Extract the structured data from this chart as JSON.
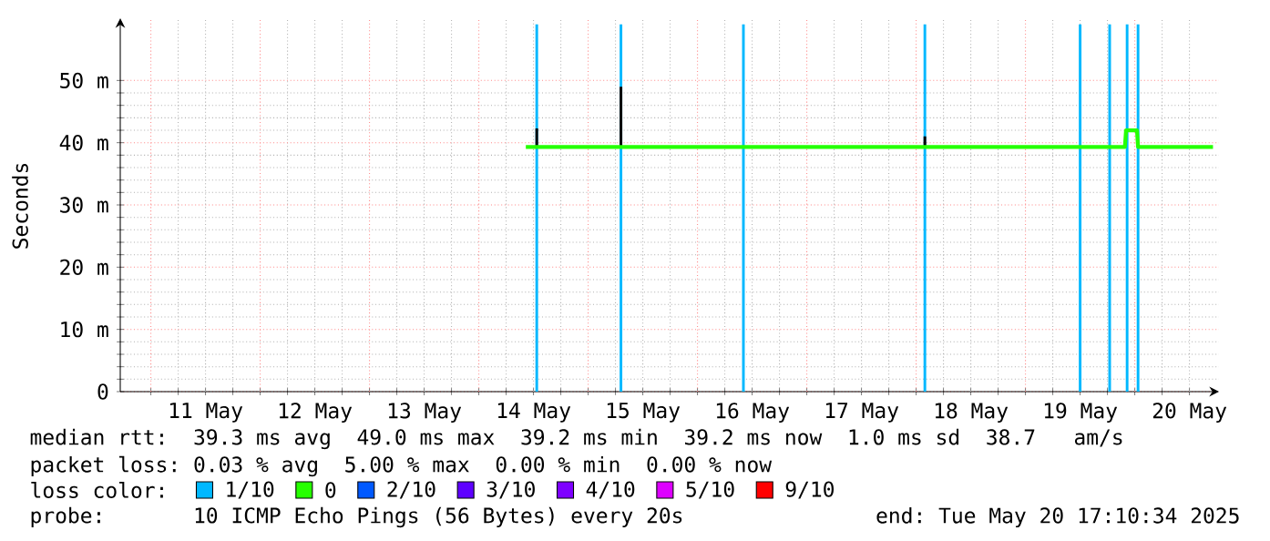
{
  "chart_data": {
    "type": "line",
    "ylabel": "Seconds",
    "legend_title": "loss color:",
    "legend": "bottom",
    "grid": true,
    "xlim": [
      "2025-05-10T17:17",
      "2025-05-20T18:29"
    ],
    "ylim": [
      0,
      60
    ],
    "xticks": [
      {
        "value": "2025-05-11",
        "label": null
      },
      {
        "value": "2025-05-11T12:00",
        "label": "11 May"
      },
      {
        "value": "2025-05-12",
        "label": null
      },
      {
        "value": "2025-05-12T12:00",
        "label": "12 May"
      },
      {
        "value": "2025-05-13",
        "label": null
      },
      {
        "value": "2025-05-13T12:00",
        "label": "13 May"
      },
      {
        "value": "2025-05-14",
        "label": null
      },
      {
        "value": "2025-05-14T12:00",
        "label": "14 May"
      },
      {
        "value": "2025-05-15",
        "label": null
      },
      {
        "value": "2025-05-15T12:00",
        "label": "15 May"
      },
      {
        "value": "2025-05-16",
        "label": null
      },
      {
        "value": "2025-05-16T12:00",
        "label": "16 May"
      },
      {
        "value": "2025-05-17",
        "label": null
      },
      {
        "value": "2025-05-17T12:00",
        "label": "17 May"
      },
      {
        "value": "2025-05-18",
        "label": null
      },
      {
        "value": "2025-05-18T12:00",
        "label": "18 May"
      },
      {
        "value": "2025-05-19",
        "label": null
      },
      {
        "value": "2025-05-19T12:00",
        "label": "19 May"
      },
      {
        "value": "2025-05-20",
        "label": null
      },
      {
        "value": "2025-05-20T12:00",
        "label": "20 May"
      }
    ],
    "yticks": [
      {
        "value": 0,
        "label": "0"
      },
      {
        "value": 10,
        "label": "10 m"
      },
      {
        "value": 20,
        "label": "20 m"
      },
      {
        "value": 30,
        "label": "30 m"
      },
      {
        "value": 40,
        "label": "40 m"
      },
      {
        "value": 50,
        "label": "50 m"
      }
    ],
    "series": [
      {
        "name": "1/10",
        "type": "bar",
        "color": "#00b8ff",
        "x": [
          "2025-05-14T12:43",
          "2025-05-15T07:12",
          "2025-05-16T10:05",
          "2025-05-18T01:55",
          "2025-05-19T12:00",
          "2025-05-19T18:29",
          "2025-05-19T22:19",
          "2025-05-20T00:43"
        ],
        "values": [
          59,
          59,
          59,
          59,
          59,
          59,
          59,
          59
        ]
      },
      {
        "color": "#000000",
        "x": [
          "2025-05-14T12:43",
          "2025-05-14T12:43",
          "2025-05-14T14:24",
          "2025-05-15T07:12",
          "2025-05-15T07:12",
          "2025-05-15T09:36",
          "2025-05-18T01:55",
          "2025-05-18T01:55"
        ],
        "values": [
          39.3,
          42.3,
          null,
          39.3,
          49,
          null,
          39.3,
          41
        ]
      },
      {
        "name": "0",
        "color": "#26ff00",
        "x": [
          "2025-05-14T10:19",
          "2025-05-19T21:50",
          "2025-05-19T22:05",
          "2025-05-20T00:29",
          "2025-05-20T00:43",
          "2025-05-20T17:10"
        ],
        "values": [
          39.3,
          39.3,
          42,
          42,
          39.3,
          39.3
        ]
      },
      {
        "name": "2/10",
        "color": "#0059ff"
      },
      {
        "name": "3/10",
        "color": "#5e00ff"
      },
      {
        "name": "4/10",
        "color": "#7e00ff"
      },
      {
        "name": "5/10",
        "color": "#dd00ff"
      },
      {
        "name": "9/10",
        "color": "#ff0000"
      }
    ],
    "annotations": [
      "median rtt:  39.3 ms avg  49.0 ms max  39.2 ms min  39.2 ms now  1.0 ms sd  38.7   am/s",
      "packet loss: 0.03 % avg  5.00 % max  0.00 % min  0.00 % now",
      "probe:       10 ICMP Echo Pings (56 Bytes) every 20s",
      "end: Tue May 20 17:10:34 2025"
    ]
  }
}
